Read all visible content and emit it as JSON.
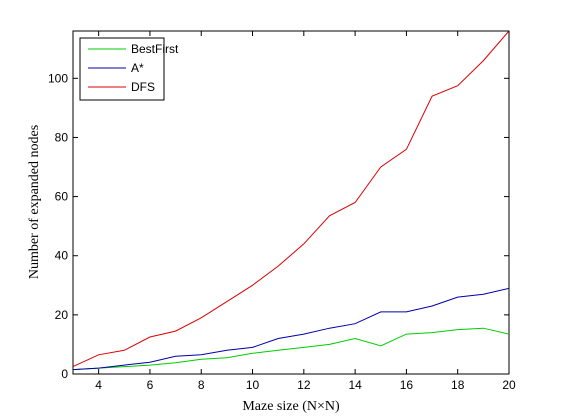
{
  "chart_data": {
    "type": "line",
    "title": "",
    "xlabel": "Maze size (N×N)",
    "ylabel": "Number of expanded nodes",
    "xlim": [
      3,
      20
    ],
    "ylim": [
      0,
      116
    ],
    "xticks": [
      4,
      6,
      8,
      10,
      12,
      14,
      16,
      18,
      20
    ],
    "yticks": [
      0,
      20,
      40,
      60,
      80,
      100
    ],
    "grid": false,
    "legend_position": "top-left",
    "x": [
      3,
      4,
      5,
      6,
      7,
      8,
      9,
      10,
      11,
      12,
      13,
      14,
      15,
      16,
      17,
      18,
      19,
      20
    ],
    "series": [
      {
        "name": "BestFirst",
        "color": "#00cc00",
        "values": [
          1.5,
          2,
          2.5,
          3,
          3.8,
          5,
          5.5,
          7,
          8,
          9,
          10,
          12,
          9.5,
          13.5,
          14,
          15,
          15.5,
          13.5
        ]
      },
      {
        "name": "A*",
        "color": "#0000aa",
        "values": [
          1.5,
          2,
          3,
          4,
          6,
          6.5,
          8,
          9,
          12,
          13.5,
          15.5,
          17,
          21,
          21,
          23,
          26,
          27,
          29
        ]
      },
      {
        "name": "DFS",
        "color": "#dd0000",
        "values": [
          2.5,
          6.5,
          8,
          12.5,
          14.5,
          19,
          24.5,
          30,
          36.5,
          44,
          53.5,
          58,
          70,
          76,
          94,
          97.5,
          106,
          116
        ]
      }
    ]
  }
}
